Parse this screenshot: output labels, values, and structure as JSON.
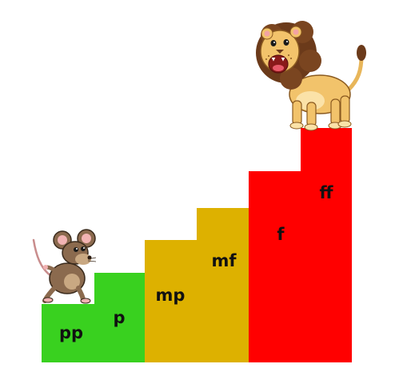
{
  "steps": [
    {
      "label": "pp",
      "color": "#39d11f"
    },
    {
      "label": "p",
      "color": "#39d11f"
    },
    {
      "label": "mp",
      "color": "#ddb100"
    },
    {
      "label": "mf",
      "color": "#ddb100"
    },
    {
      "label": "f",
      "color": "#ff0000"
    },
    {
      "label": "ff",
      "color": "#ff0000"
    }
  ],
  "characters": {
    "left": "mouse-illustration",
    "right": "lion-illustration"
  }
}
